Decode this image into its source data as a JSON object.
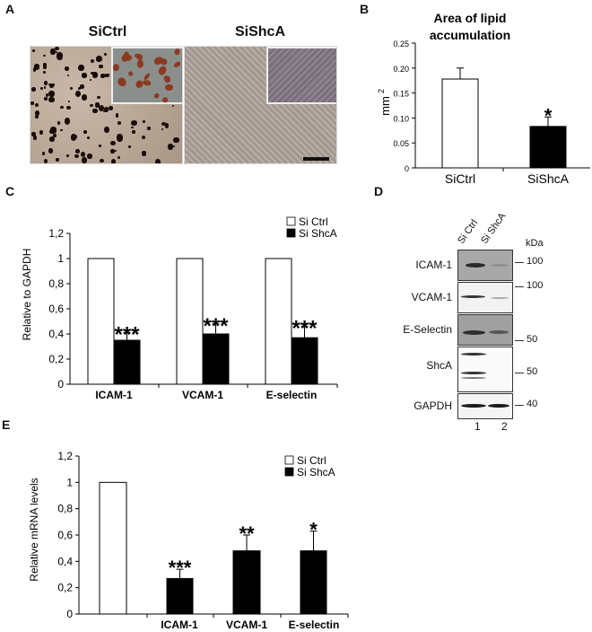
{
  "panels": {
    "A": {
      "label": "A",
      "titles": [
        "SiCtrl",
        "SiShcA"
      ]
    },
    "B": {
      "label": "B"
    },
    "C": {
      "label": "C"
    },
    "D": {
      "label": "D",
      "lanes": [
        "Si Ctrl",
        "Si ShcA"
      ],
      "lane_numbers": [
        "1",
        "2"
      ],
      "kda_header": "kDa",
      "rows": [
        {
          "name": "ICAM-1",
          "marker": "100"
        },
        {
          "name": "VCAM-1",
          "marker": "100"
        },
        {
          "name": "E-Selectin",
          "marker": "50"
        },
        {
          "name": "ShcA",
          "marker": "50"
        },
        {
          "name": "GAPDH",
          "marker": "40"
        }
      ]
    },
    "E": {
      "label": "E"
    }
  },
  "colors": {
    "ctrl_fill": "#ffffff",
    "shca_fill": "#000000",
    "axis": "#000000"
  },
  "chart_data": [
    {
      "panel": "B",
      "type": "bar",
      "title": "Area of lipid accumulation",
      "title_lines": [
        "Area of lipid",
        "accumulation"
      ],
      "xlabel": "",
      "ylabel": "mm 2",
      "ylabel_main": "mm",
      "ylabel_sup": "2",
      "ylim": [
        0,
        0.25
      ],
      "yticks": [
        "0",
        "0.05",
        "0.10",
        "0.15",
        "0.20",
        "0.25"
      ],
      "categories": [
        "SiCtrl",
        "SiShcA"
      ],
      "values": [
        0.178,
        0.083
      ],
      "errors": [
        0.022,
        0.019
      ],
      "fills": [
        "#ffffff",
        "#000000"
      ],
      "annotations": [
        "",
        "*"
      ],
      "grid": false
    },
    {
      "panel": "C",
      "type": "bar",
      "title": "",
      "xlabel": "",
      "ylabel": "Relative to GAPDH",
      "ylim": [
        0,
        1.2
      ],
      "yticks": [
        "0",
        "0,2",
        "0,4",
        "0,6",
        "0,8",
        "1",
        "1,2"
      ],
      "categories": [
        "ICAM-1",
        "VCAM-1",
        "E-selectin"
      ],
      "series": [
        {
          "name": "Si Ctrl",
          "values": [
            1.0,
            1.0,
            1.0
          ],
          "errors": [
            0,
            0,
            0
          ],
          "fill": "#ffffff"
        },
        {
          "name": "Si ShcA",
          "values": [
            0.35,
            0.4,
            0.37
          ],
          "errors": [
            0.06,
            0.08,
            0.09
          ],
          "fill": "#000000"
        }
      ],
      "annotations": [
        "***",
        "***",
        "***"
      ],
      "legend": [
        "Si Ctrl",
        "Si ShcA"
      ],
      "legend_position": "top-right",
      "grid": false
    },
    {
      "panel": "E",
      "type": "bar",
      "title": "",
      "xlabel": "",
      "ylabel": "Relative mRNA levels",
      "ylim": [
        0,
        1.2
      ],
      "yticks": [
        "0",
        "0,2",
        "0,4",
        "0,6",
        "0,8",
        "1",
        "1,2"
      ],
      "categories": [
        "",
        "ICAM-1",
        "VCAM-1",
        "E-selectin"
      ],
      "series": [
        {
          "name": "Si Ctrl",
          "values": [
            1.0,
            null,
            null,
            null
          ],
          "errors": [
            0,
            0,
            0,
            0
          ],
          "fill": "#ffffff"
        },
        {
          "name": "Si ShcA",
          "values": [
            null,
            0.27,
            0.48,
            0.48
          ],
          "errors": [
            0,
            0.07,
            0.12,
            0.15
          ],
          "fill": "#000000"
        }
      ],
      "annotations": [
        "",
        "***",
        "**",
        "*"
      ],
      "legend": [
        "Si Ctrl",
        "Si ShcA"
      ],
      "legend_position": "top-right",
      "grid": false
    }
  ]
}
